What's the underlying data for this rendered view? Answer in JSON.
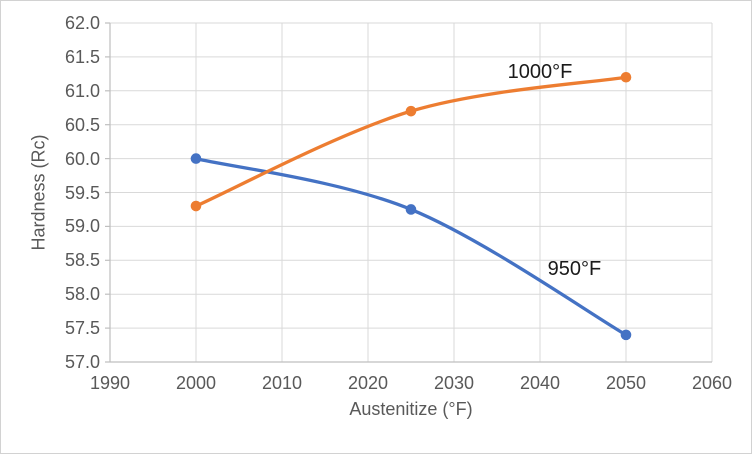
{
  "chart_data": {
    "type": "line",
    "title": "",
    "xlabel": "Austenitize (°F)",
    "ylabel": "Hardness (Rc)",
    "x": [
      2000,
      2025,
      2050
    ],
    "xlim": [
      1990,
      2060
    ],
    "ylim": [
      57.0,
      62.0
    ],
    "x_ticks": [
      1990,
      2000,
      2010,
      2020,
      2030,
      2040,
      2050,
      2060
    ],
    "y_ticks": [
      57.0,
      57.5,
      58.0,
      58.5,
      59.0,
      59.5,
      60.0,
      60.5,
      61.0,
      61.5,
      62.0
    ],
    "y_tick_decimals": 1,
    "grid": true,
    "smoothed_lines": true,
    "legend_position": "none-inline-labels",
    "series": [
      {
        "name": "950°F",
        "color": "#4472C4",
        "values": [
          60.0,
          59.25,
          57.4
        ],
        "annotation": {
          "text": "950°F",
          "x": 2044,
          "y": 58.37
        }
      },
      {
        "name": "1000°F",
        "color": "#ED7D31",
        "values": [
          59.3,
          60.7,
          61.2
        ],
        "annotation": {
          "text": "1000°F",
          "x": 2040,
          "y": 61.28
        }
      }
    ]
  },
  "colors": {
    "background": "#FFFFFF",
    "frame_border": "#D2D2D2",
    "gridline": "#D9D9D9",
    "axis_line": "#BFBFBF",
    "tick_text": "#595959",
    "annotation_text": "#1A1A1A"
  }
}
